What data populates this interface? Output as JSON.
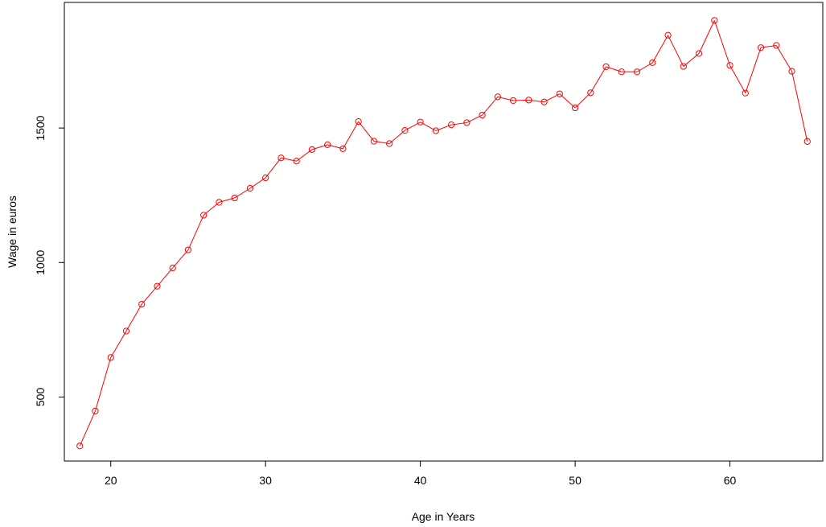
{
  "chart_data": {
    "type": "line",
    "title": "",
    "xlabel": "Age in Years",
    "ylabel": "Wage in euros",
    "xlim": [
      17,
      66
    ],
    "ylim": [
      262,
      1967
    ],
    "x_ticks": [
      20,
      30,
      40,
      50,
      60
    ],
    "y_ticks": [
      500,
      1000,
      1500
    ],
    "x_tick_labels": [
      "20",
      "30",
      "40",
      "50",
      "60"
    ],
    "y_tick_labels": [
      "500",
      "1000",
      "1500"
    ],
    "grid": false,
    "series": [
      {
        "color": "#ff0000",
        "marker": "open-circle",
        "x": [
          18,
          19,
          20,
          21,
          22,
          23,
          24,
          25,
          26,
          27,
          28,
          29,
          30,
          31,
          32,
          33,
          34,
          35,
          36,
          37,
          38,
          39,
          40,
          41,
          42,
          43,
          44,
          45,
          46,
          47,
          48,
          49,
          50,
          51,
          52,
          53,
          54,
          55,
          56,
          57,
          58,
          59,
          60,
          61,
          62,
          63,
          64,
          65
        ],
        "y": [
          318,
          448,
          647,
          745,
          845,
          912,
          980,
          1047,
          1176,
          1224,
          1240,
          1276,
          1315,
          1389,
          1377,
          1420,
          1438,
          1423,
          1524,
          1451,
          1442,
          1491,
          1522,
          1490,
          1512,
          1520,
          1548,
          1616,
          1602,
          1604,
          1597,
          1627,
          1575,
          1631,
          1728,
          1709,
          1709,
          1743,
          1845,
          1729,
          1777,
          1900,
          1733,
          1630,
          1799,
          1807,
          1711,
          1450
        ]
      }
    ]
  }
}
